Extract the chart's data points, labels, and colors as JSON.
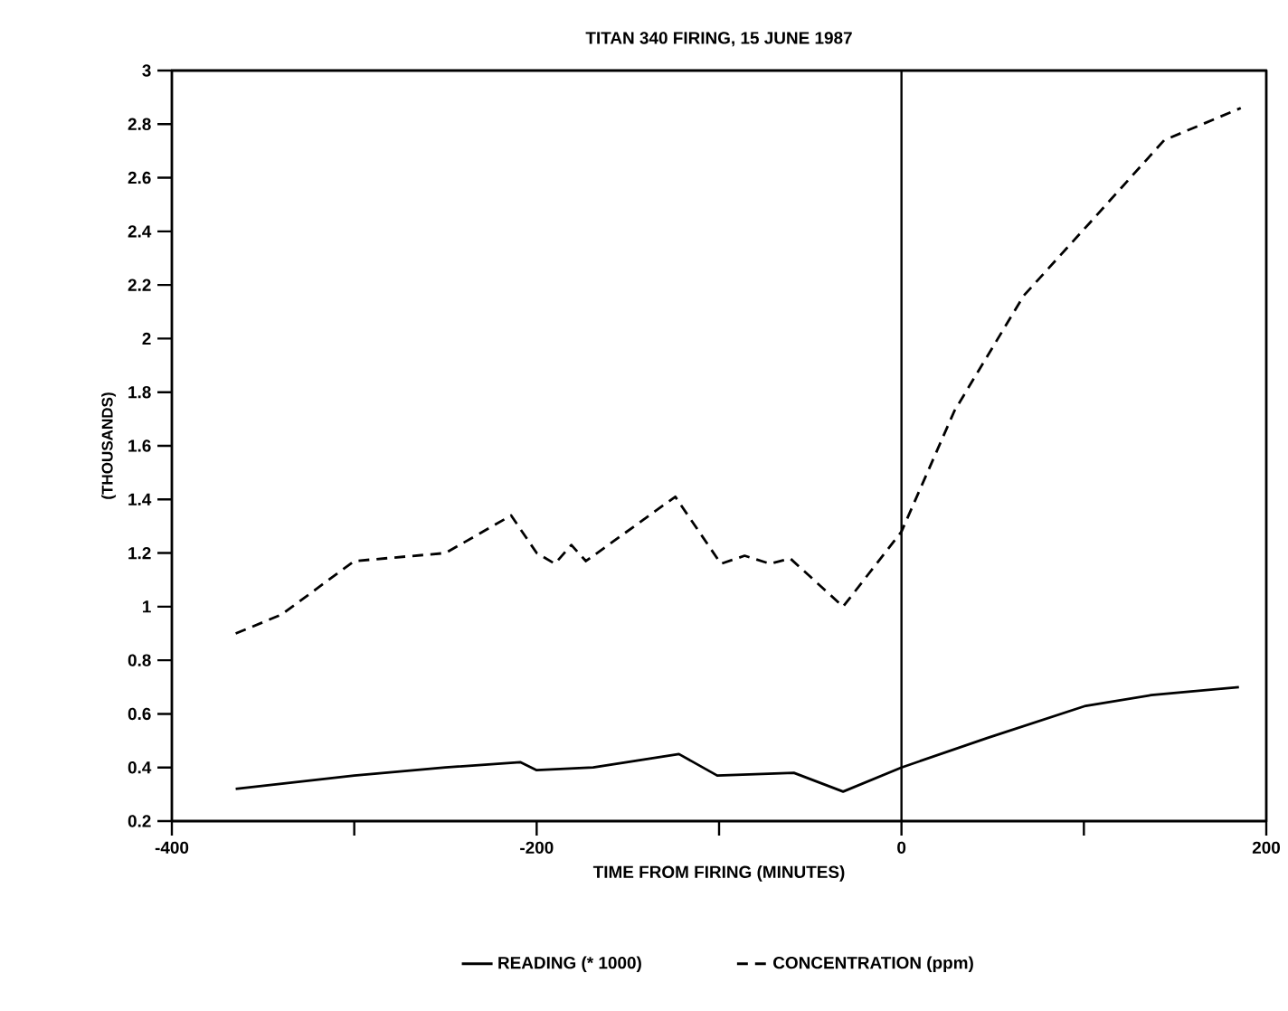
{
  "chart_data": {
    "type": "line",
    "title": "TITAN 340 FIRING, 15 JUNE 1987",
    "xlabel": "TIME FROM FIRING (MINUTES)",
    "ylabel": "(THOUSANDS)",
    "xlim": [
      -400,
      200
    ],
    "xticks": [
      -400,
      {
        "value": -300,
        "label": null
      },
      -200,
      {
        "value": -100,
        "label": null
      },
      0,
      {
        "value": 100,
        "label": null
      },
      200
    ],
    "ylim": [
      0.2,
      3
    ],
    "yticks": [
      0.2,
      0.4,
      0.6,
      0.8,
      1,
      1.2,
      1.4,
      1.6,
      1.8,
      2,
      2.2,
      2.4,
      2.6,
      2.8,
      3
    ],
    "legend": "bottom",
    "grid": false,
    "marker": "none",
    "ref_lines": [
      {
        "axis": "x",
        "value": 0,
        "color": "#000000",
        "line_style": "solid"
      }
    ],
    "series": [
      {
        "name": "READING (* 1000)",
        "color": "#000000",
        "line_style": "solid",
        "x": [
          -365,
          -300,
          -250,
          -209,
          -200,
          -169,
          -122,
          -101,
          -59,
          -32,
          0,
          47,
          101,
          137,
          185
        ],
        "values": [
          0.32,
          0.37,
          0.4,
          0.42,
          0.39,
          0.4,
          0.45,
          0.37,
          0.38,
          0.31,
          0.4,
          0.51,
          0.63,
          0.67,
          0.7
        ]
      },
      {
        "name": "CONCENTRATION (ppm)",
        "color": "#000000",
        "line_style": "dashed",
        "x": [
          -365,
          -340,
          -300,
          -250,
          -214,
          -200,
          -190,
          -181,
          -173,
          -124,
          -99,
          -86,
          -72,
          -61,
          -32,
          0,
          29,
          67,
          103,
          144,
          186
        ],
        "values": [
          0.9,
          0.97,
          1.17,
          1.2,
          1.34,
          1.2,
          1.16,
          1.23,
          1.17,
          1.41,
          1.16,
          1.19,
          1.16,
          1.18,
          1.0,
          1.28,
          1.73,
          2.16,
          2.43,
          2.74,
          2.86
        ]
      }
    ]
  }
}
